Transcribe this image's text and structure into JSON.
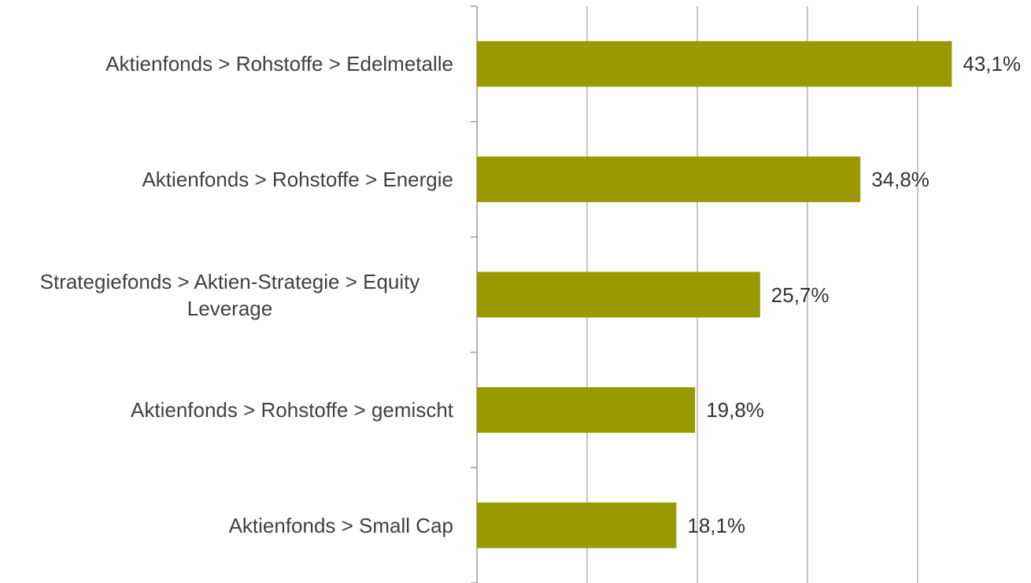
{
  "chart_data": {
    "type": "bar",
    "orientation": "horizontal",
    "categories": [
      "Aktienfonds > Rohstoffe > Edelmetalle",
      "Aktienfonds > Rohstoffe > Energie",
      "Strategiefonds > Aktien-Strategie > Equity Leverage",
      "Aktienfonds > Rohstoffe > gemischt",
      "Aktienfonds > Small Cap"
    ],
    "values": [
      43.1,
      34.8,
      25.7,
      19.8,
      18.1
    ],
    "value_labels": [
      "43,1%",
      "34,8%",
      "25,7%",
      "19,8%",
      "18,1%"
    ],
    "color": "#999900",
    "xlim": [
      0,
      50
    ],
    "xticks": [
      0,
      10,
      20,
      30,
      40
    ],
    "grid": true
  }
}
